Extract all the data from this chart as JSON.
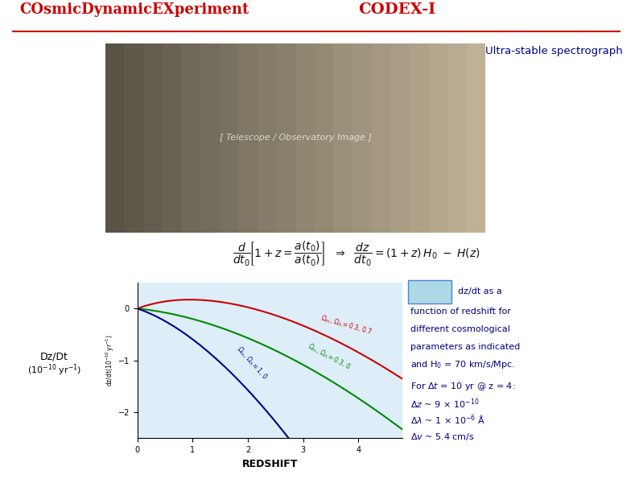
{
  "title_left": "COsmicDynamicEXperiment",
  "title_right": "CODEX-I",
  "subtitle": "Ultra-stable spectrograph",
  "title_color": "#cc0000",
  "subtitle_color": "#000080",
  "bg_color": "#ffffff",
  "plot_bg_color": "#ddeef8",
  "plot_border_color": "#4488aa",
  "formula_bg": "#e8f0f8",
  "ylabel_text": "Dz/Dt\n(10-10 yr-1)",
  "xlabel_text": "REDSHIFT",
  "ylim": [
    -2.5,
    0.5
  ],
  "xlim": [
    0,
    4.8
  ],
  "curve_colors": [
    "#cc0000",
    "#008800",
    "#000088"
  ],
  "text_color": "#000080",
  "legend_box_color": "#add8e6",
  "xticks": [
    0,
    1,
    2,
    3,
    4
  ],
  "yticks": [
    -2,
    -1,
    0
  ],
  "img_placeholder_color": "#b0a090",
  "separator_color": "#4488cc"
}
